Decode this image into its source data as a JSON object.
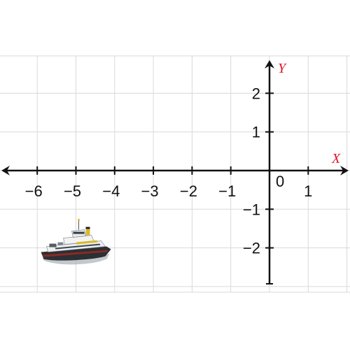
{
  "plane": {
    "x_axis_label": "X",
    "y_axis_label": "Y",
    "origin_label": "0",
    "x_ticks": [
      {
        "value": -6,
        "label": "−6"
      },
      {
        "value": -5,
        "label": "−5"
      },
      {
        "value": -4,
        "label": "−4"
      },
      {
        "value": -3,
        "label": "−3"
      },
      {
        "value": -2,
        "label": "−2"
      },
      {
        "value": -1,
        "label": "−1"
      },
      {
        "value": 1,
        "label": "1"
      }
    ],
    "y_ticks": [
      {
        "value": 2,
        "label": "2"
      },
      {
        "value": 1,
        "label": "1"
      },
      {
        "value": -1,
        "label": "−1"
      },
      {
        "value": -2,
        "label": "−2"
      }
    ],
    "x_range": [
      -7,
      2
    ],
    "y_range": [
      -3,
      3
    ],
    "grid": true,
    "colors": {
      "axis": "#111111",
      "grid": "#d9d9d9",
      "axis_name": "#e0162b"
    }
  },
  "ferry": {
    "icon": "ferry-boat-icon",
    "center": {
      "x": -5,
      "y": -2
    }
  }
}
